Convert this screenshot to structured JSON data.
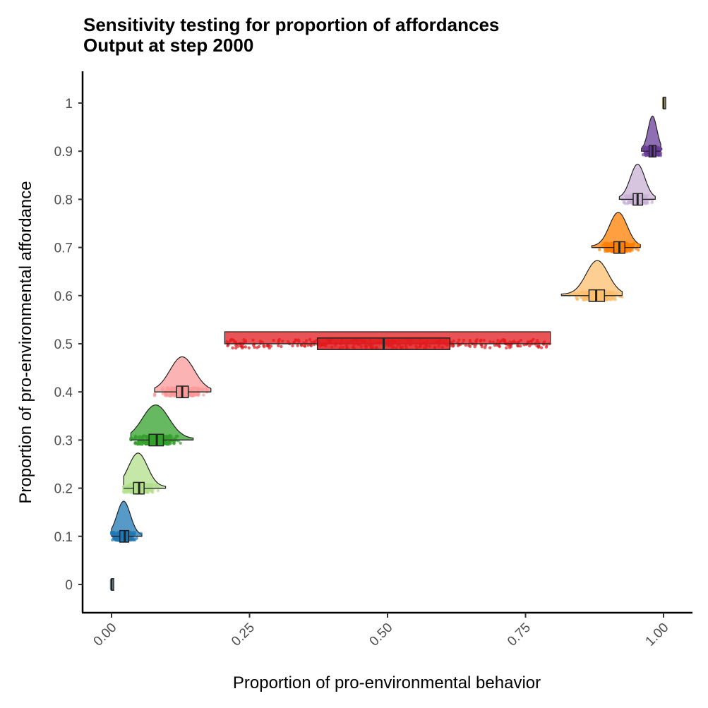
{
  "chart_data": {
    "type": "raincloud",
    "title": "Sensitivity testing for proportion of affordances",
    "subtitle": "Output at step 2000",
    "xlabel": "Proportion of pro-environmental behavior",
    "ylabel": "Proportion of pro-environmental affordance",
    "xlim": [
      -0.05,
      1.05
    ],
    "ylim": [
      -0.05,
      1.05
    ],
    "x_ticks": [
      "0.00",
      "0.25",
      "0.50",
      "0.75",
      "1.00"
    ],
    "y_ticks": [
      "0",
      "0.1",
      "0.2",
      "0.3",
      "0.4",
      "0.5",
      "0.6",
      "0.7",
      "0.8",
      "0.9",
      "1"
    ],
    "grid": false,
    "groups": [
      {
        "affordance": 0.0,
        "color": "#a6cee3",
        "min": 0.0,
        "q1": 0.0,
        "median": 0.0,
        "q3": 0.0,
        "max": 0.0,
        "mode": 0.0,
        "spread": 0.003
      },
      {
        "affordance": 0.1,
        "color": "#1f78b4",
        "min": 0.0,
        "q1": 0.015,
        "median": 0.024,
        "q3": 0.031,
        "max": 0.055,
        "mode": 0.022,
        "spread": 0.012
      },
      {
        "affordance": 0.2,
        "color": "#b2df8a",
        "min": 0.022,
        "q1": 0.04,
        "median": 0.05,
        "q3": 0.059,
        "max": 0.098,
        "mode": 0.048,
        "spread": 0.017
      },
      {
        "affordance": 0.3,
        "color": "#33a02c",
        "min": 0.035,
        "q1": 0.068,
        "median": 0.082,
        "q3": 0.094,
        "max": 0.148,
        "mode": 0.08,
        "spread": 0.024
      },
      {
        "affordance": 0.4,
        "color": "#fb9a99",
        "min": 0.078,
        "q1": 0.118,
        "median": 0.128,
        "q3": 0.139,
        "max": 0.18,
        "mode": 0.128,
        "spread": 0.022
      },
      {
        "affordance": 0.5,
        "color": "#e31a1c",
        "min": 0.205,
        "q1": 0.373,
        "median": 0.493,
        "q3": 0.613,
        "max": 0.795,
        "mode": 0.49,
        "spread": 0.2
      },
      {
        "affordance": 0.6,
        "color": "#fdbf6f",
        "min": 0.815,
        "q1": 0.865,
        "median": 0.878,
        "q3": 0.893,
        "max": 0.925,
        "mode": 0.88,
        "spread": 0.02
      },
      {
        "affordance": 0.7,
        "color": "#ff7f00",
        "min": 0.87,
        "q1": 0.91,
        "median": 0.92,
        "q3": 0.93,
        "max": 0.958,
        "mode": 0.918,
        "spread": 0.016
      },
      {
        "affordance": 0.8,
        "color": "#cab2d6",
        "min": 0.92,
        "q1": 0.945,
        "median": 0.953,
        "q3": 0.962,
        "max": 0.985,
        "mode": 0.953,
        "spread": 0.013
      },
      {
        "affordance": 0.9,
        "color": "#6a3d9a",
        "min": 0.96,
        "q1": 0.974,
        "median": 0.98,
        "q3": 0.986,
        "max": 0.995,
        "mode": 0.98,
        "spread": 0.008
      },
      {
        "affordance": 1.0,
        "color": "#ffff99",
        "min": 1.0,
        "q1": 1.0,
        "median": 1.0,
        "q3": 1.0,
        "max": 1.0,
        "mode": 1.0,
        "spread": 0.003
      }
    ]
  }
}
